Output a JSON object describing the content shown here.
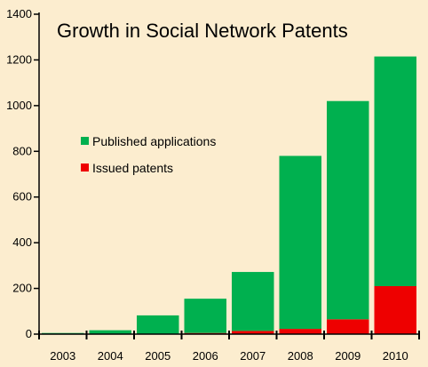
{
  "chart_data": {
    "type": "bar",
    "stacked": true,
    "title": "Growth in Social Network Patents",
    "xlabel": "",
    "ylabel": "",
    "categories": [
      "2003",
      "2004",
      "2005",
      "2006",
      "2007",
      "2008",
      "2009",
      "2010"
    ],
    "ylim": [
      0,
      1400
    ],
    "yticks": [
      0,
      200,
      400,
      600,
      800,
      1000,
      1200,
      1400
    ],
    "grid": false,
    "legend_position": "left-middle",
    "series": [
      {
        "name": "Issued patents",
        "color": "#ee0000",
        "values": [
          0,
          0,
          0,
          5,
          14,
          23,
          65,
          210
        ]
      },
      {
        "name": "Published applications",
        "color": "#00b04f",
        "values": [
          5,
          17,
          82,
          150,
          258,
          757,
          955,
          1005
        ]
      }
    ],
    "legend": [
      {
        "label": "Published applications",
        "color": "#00b04f"
      },
      {
        "label": "Issued patents",
        "color": "#ee0000"
      }
    ],
    "background": "#fcedcf"
  }
}
